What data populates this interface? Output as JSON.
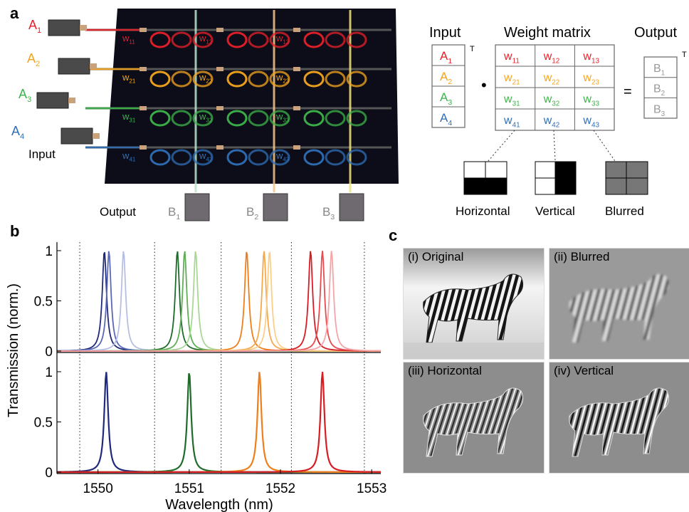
{
  "panels": {
    "a": "a",
    "b": "b",
    "c": "c"
  },
  "panel_a": {
    "input_label": "Input",
    "output_label": "Output",
    "inputs": [
      {
        "letter": "A",
        "sub": "1",
        "color": "#e8202a"
      },
      {
        "letter": "A",
        "sub": "2",
        "color": "#f5a51c"
      },
      {
        "letter": "A",
        "sub": "3",
        "color": "#3cb44a"
      },
      {
        "letter": "A",
        "sub": "4",
        "color": "#2f6fb7"
      }
    ],
    "outputs": [
      {
        "letter": "B",
        "sub": "1"
      },
      {
        "letter": "B",
        "sub": "2"
      },
      {
        "letter": "B",
        "sub": "3"
      }
    ],
    "weights": [
      [
        "w",
        "11",
        "w",
        "12",
        "w",
        "13"
      ],
      [
        "w",
        "21",
        "w",
        "22",
        "w",
        "23"
      ],
      [
        "w",
        "31",
        "w",
        "32",
        "w",
        "33"
      ],
      [
        "w",
        "41",
        "w",
        "42",
        "w",
        "43"
      ]
    ]
  },
  "equation": {
    "input_title": "Input",
    "matrix_title": "Weight matrix",
    "output_title": "Output",
    "transpose": "T",
    "dot": "•",
    "equals": "=",
    "kernels": [
      "Horizontal",
      "Vertical",
      "Blurred"
    ]
  },
  "chart_data": {
    "type": "line",
    "xlabel": "Wavelength (nm)",
    "ylabel": "Transmission (norm.)",
    "xlim": [
      1549.55,
      1553.1
    ],
    "xticks": [
      1550,
      1551,
      1552,
      1553
    ],
    "yticks": [
      0,
      0.5,
      1
    ],
    "ylim": [
      0,
      1.05
    ],
    "dotted_lines": [
      1549.8,
      1550.62,
      1551.35,
      1552.12,
      1552.92
    ],
    "top": {
      "series": [
        {
          "center": 1550.07,
          "color": "#1f2a7a"
        },
        {
          "center": 1550.12,
          "color": "#5b68b5"
        },
        {
          "center": 1550.28,
          "color": "#b7bee4"
        },
        {
          "center": 1550.87,
          "color": "#1e6b2a"
        },
        {
          "center": 1550.95,
          "color": "#5fae55"
        },
        {
          "center": 1551.07,
          "color": "#a8d796"
        },
        {
          "center": 1551.63,
          "color": "#ee7f1c"
        },
        {
          "center": 1551.82,
          "color": "#f6a94a"
        },
        {
          "center": 1551.88,
          "color": "#fbcf88"
        },
        {
          "center": 1552.33,
          "color": "#d71d24"
        },
        {
          "center": 1552.46,
          "color": "#e84b4f"
        },
        {
          "center": 1552.56,
          "color": "#f4a5a8"
        }
      ]
    },
    "bottom": {
      "series": [
        {
          "center": 1550.09,
          "color": "#1f2a7a"
        },
        {
          "center": 1551.0,
          "color": "#1e6b2a"
        },
        {
          "center": 1551.77,
          "color": "#ee7f1c"
        },
        {
          "center": 1552.46,
          "color": "#d71d24"
        }
      ]
    }
  },
  "panel_c": {
    "images": [
      {
        "label": "(i) Original"
      },
      {
        "label": "(ii) Blurred"
      },
      {
        "label": "(iii) Horizontal"
      },
      {
        "label": "(iv) Vertical"
      }
    ]
  }
}
